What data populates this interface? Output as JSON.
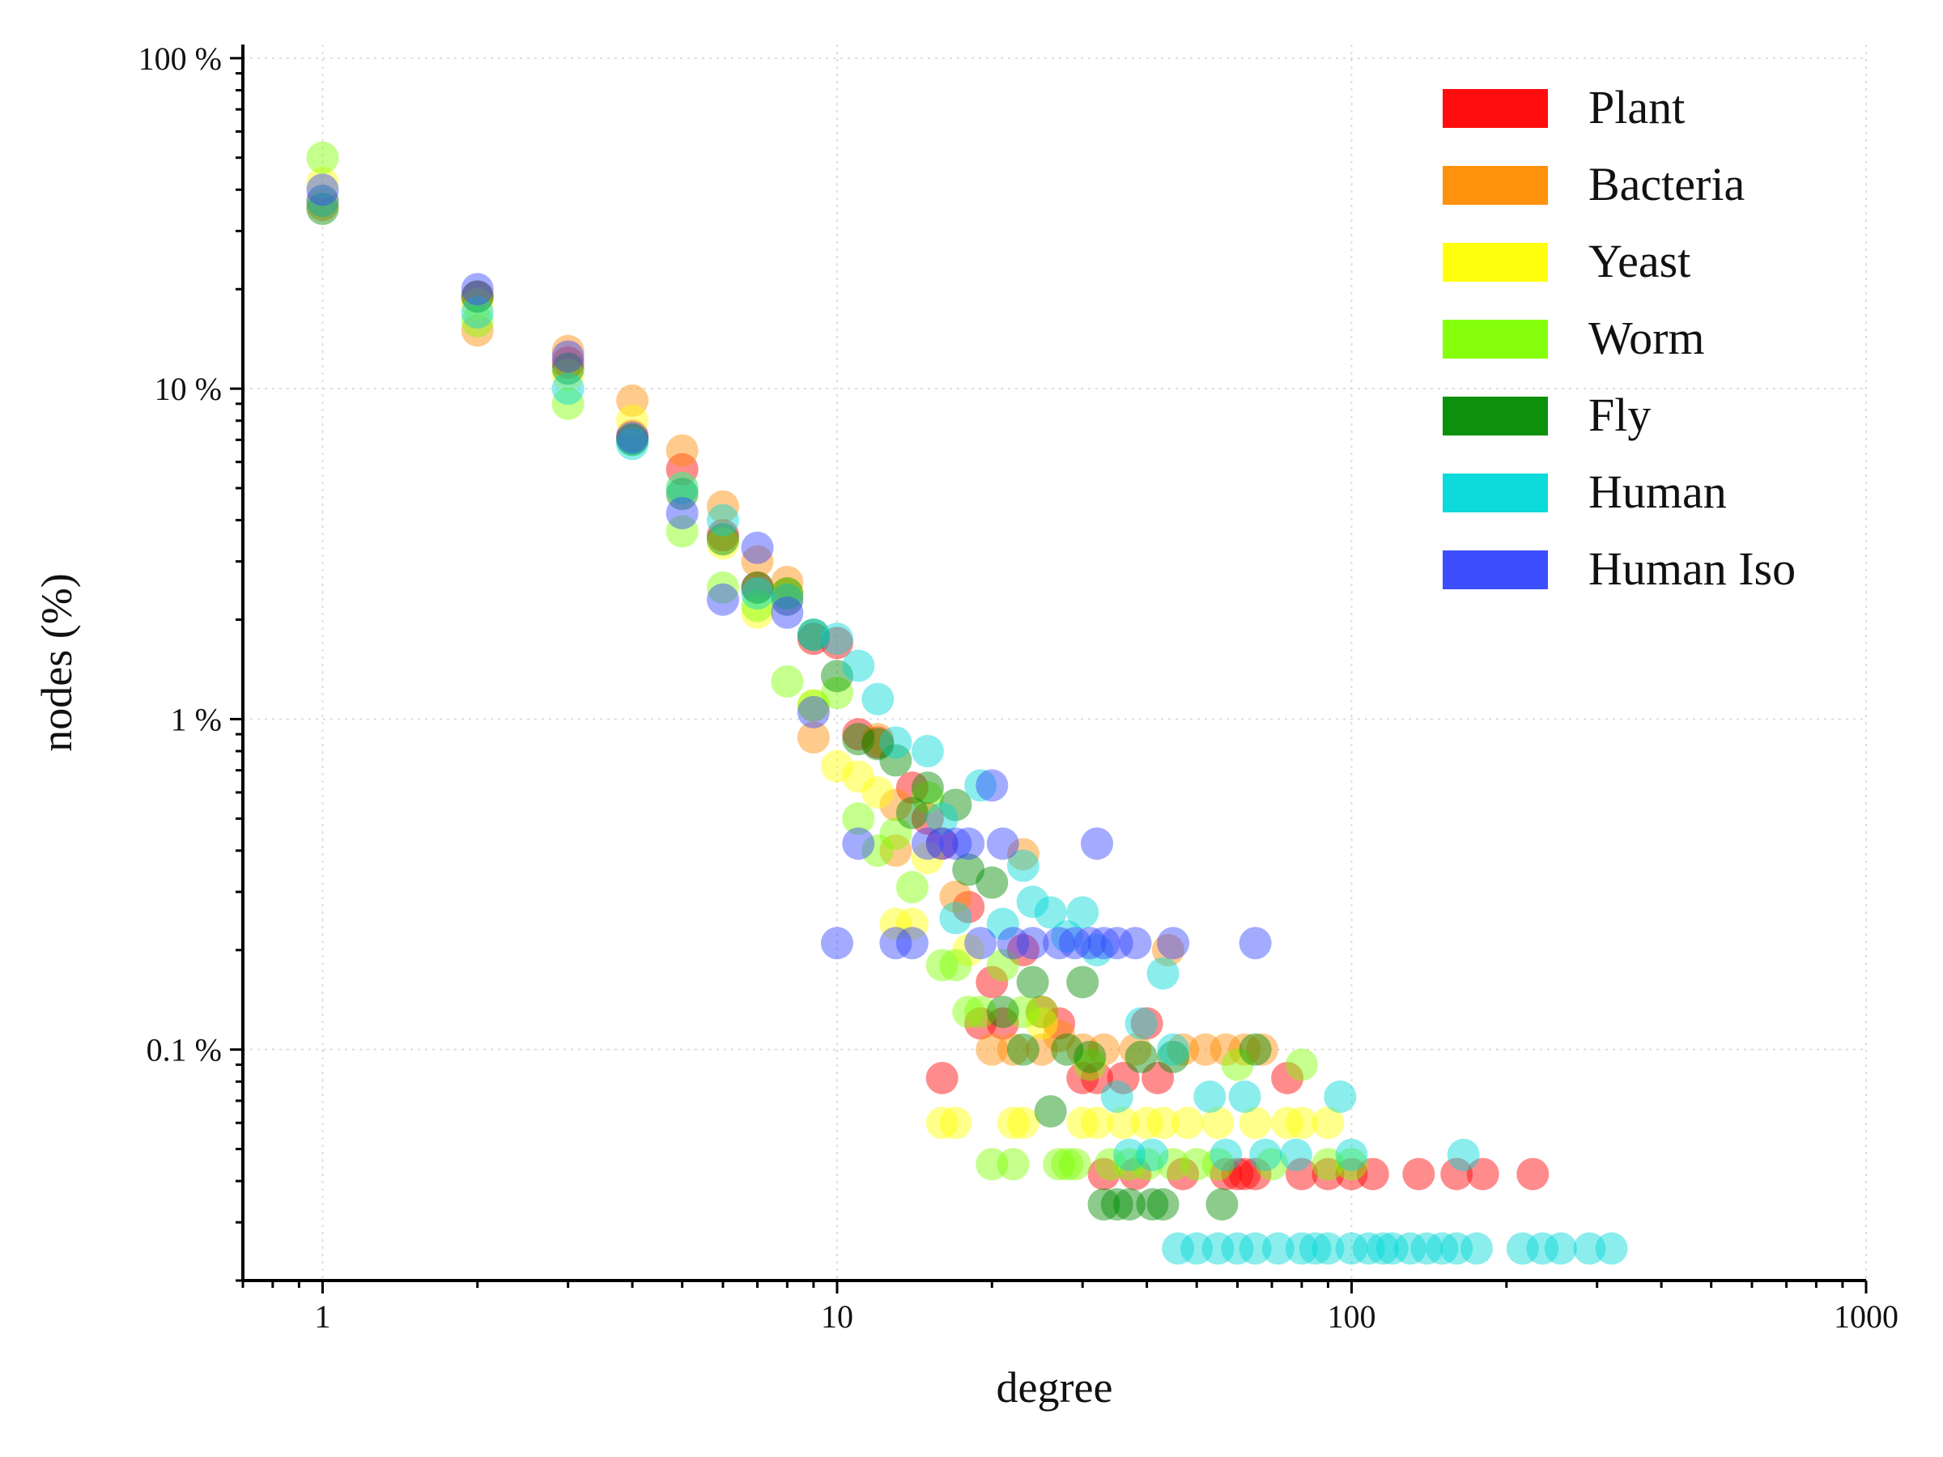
{
  "chart_data": {
    "type": "scatter",
    "title": "",
    "xlabel": "degree",
    "ylabel": "nodes (%)",
    "x_scale": "log",
    "y_scale": "log",
    "xlim": [
      0.7,
      1000
    ],
    "ylim": [
      0.02,
      110
    ],
    "x_ticks": [
      {
        "value": 1,
        "label": "1"
      },
      {
        "value": 10,
        "label": "10"
      },
      {
        "value": 100,
        "label": "100"
      },
      {
        "value": 1000,
        "label": "1000"
      }
    ],
    "y_ticks": [
      {
        "value": 0.1,
        "label": "0.1 %"
      },
      {
        "value": 1,
        "label": "1 %"
      },
      {
        "value": 10,
        "label": "10 %"
      },
      {
        "value": 100,
        "label": "100 %"
      }
    ],
    "grid": true,
    "legend_position": "top-right",
    "series": [
      {
        "name": "Plant",
        "color": "#ff0000",
        "points": [
          [
            1,
            37
          ],
          [
            2,
            19
          ],
          [
            3,
            12
          ],
          [
            4,
            7.2
          ],
          [
            5,
            5.7
          ],
          [
            6,
            3.6
          ],
          [
            7,
            2.5
          ],
          [
            8,
            2.3
          ],
          [
            9,
            1.75
          ],
          [
            10,
            1.7
          ],
          [
            11,
            0.9
          ],
          [
            12,
            0.85
          ],
          [
            14,
            0.62
          ],
          [
            15,
            0.5
          ],
          [
            16,
            0.42
          ],
          [
            16,
            0.082
          ],
          [
            18,
            0.27
          ],
          [
            19,
            0.12
          ],
          [
            20,
            0.16
          ],
          [
            21,
            0.12
          ],
          [
            23,
            0.2
          ],
          [
            25,
            0.13
          ],
          [
            27,
            0.12
          ],
          [
            30,
            0.082
          ],
          [
            32,
            0.082
          ],
          [
            33,
            0.042
          ],
          [
            36,
            0.082
          ],
          [
            38,
            0.042
          ],
          [
            40,
            0.12
          ],
          [
            42,
            0.082
          ],
          [
            47,
            0.042
          ],
          [
            57,
            0.042
          ],
          [
            60,
            0.042
          ],
          [
            62,
            0.042
          ],
          [
            65,
            0.042
          ],
          [
            75,
            0.082
          ],
          [
            80,
            0.042
          ],
          [
            90,
            0.042
          ],
          [
            100,
            0.042
          ],
          [
            110,
            0.042
          ],
          [
            135,
            0.042
          ],
          [
            160,
            0.042
          ],
          [
            180,
            0.042
          ],
          [
            225,
            0.042
          ]
        ]
      },
      {
        "name": "Bacteria",
        "color": "#ff8c00",
        "points": [
          [
            1,
            36
          ],
          [
            2,
            15
          ],
          [
            3,
            13
          ],
          [
            4,
            9.2
          ],
          [
            5,
            6.5
          ],
          [
            6,
            4.4
          ],
          [
            7,
            3
          ],
          [
            8,
            2.6
          ],
          [
            9,
            0.88
          ],
          [
            12,
            0.87
          ],
          [
            13,
            0.55
          ],
          [
            13,
            0.4
          ],
          [
            17,
            0.29
          ],
          [
            20,
            0.1
          ],
          [
            22,
            0.1
          ],
          [
            23,
            0.39
          ],
          [
            25,
            0.1
          ],
          [
            27,
            0.11
          ],
          [
            30,
            0.1
          ],
          [
            33,
            0.1
          ],
          [
            38,
            0.1
          ],
          [
            44,
            0.2
          ],
          [
            47,
            0.1
          ],
          [
            52,
            0.1
          ],
          [
            57,
            0.1
          ],
          [
            62,
            0.1
          ],
          [
            67,
            0.1
          ]
        ]
      },
      {
        "name": "Yeast",
        "color": "#ffff00",
        "points": [
          [
            1,
            42
          ],
          [
            2,
            18
          ],
          [
            3,
            11
          ],
          [
            4,
            8
          ],
          [
            5,
            5
          ],
          [
            6,
            3.4
          ],
          [
            7,
            2.1
          ],
          [
            8,
            2.4
          ],
          [
            9,
            1.1
          ],
          [
            10,
            0.72
          ],
          [
            11,
            0.67
          ],
          [
            12,
            0.6
          ],
          [
            13,
            0.24
          ],
          [
            14,
            0.24
          ],
          [
            15,
            0.38
          ],
          [
            16,
            0.06
          ],
          [
            17,
            0.06
          ],
          [
            18,
            0.2
          ],
          [
            22,
            0.06
          ],
          [
            23,
            0.06
          ],
          [
            25,
            0.12
          ],
          [
            30,
            0.06
          ],
          [
            32,
            0.06
          ],
          [
            36,
            0.06
          ],
          [
            40,
            0.06
          ],
          [
            43,
            0.06
          ],
          [
            48,
            0.06
          ],
          [
            55,
            0.06
          ],
          [
            65,
            0.06
          ],
          [
            75,
            0.06
          ],
          [
            80,
            0.06
          ],
          [
            90,
            0.06
          ]
        ]
      },
      {
        "name": "Worm",
        "color": "#7fff00",
        "points": [
          [
            1,
            50
          ],
          [
            2,
            16
          ],
          [
            3,
            9
          ],
          [
            4,
            7
          ],
          [
            5,
            3.7
          ],
          [
            6,
            2.5
          ],
          [
            7,
            2.2
          ],
          [
            8,
            1.3
          ],
          [
            9,
            1.1
          ],
          [
            10,
            1.2
          ],
          [
            11,
            0.5
          ],
          [
            12,
            0.4
          ],
          [
            13,
            0.45
          ],
          [
            14,
            0.31
          ],
          [
            15,
            0.58
          ],
          [
            16,
            0.18
          ],
          [
            17,
            0.18
          ],
          [
            18,
            0.13
          ],
          [
            19,
            0.13
          ],
          [
            20,
            0.045
          ],
          [
            21,
            0.18
          ],
          [
            22,
            0.045
          ],
          [
            23,
            0.13
          ],
          [
            25,
            0.13
          ],
          [
            27,
            0.045
          ],
          [
            28,
            0.045
          ],
          [
            29,
            0.045
          ],
          [
            31,
            0.09
          ],
          [
            34,
            0.045
          ],
          [
            37,
            0.045
          ],
          [
            40,
            0.045
          ],
          [
            45,
            0.045
          ],
          [
            50,
            0.045
          ],
          [
            55,
            0.045
          ],
          [
            60,
            0.09
          ],
          [
            70,
            0.045
          ],
          [
            80,
            0.09
          ],
          [
            90,
            0.045
          ],
          [
            100,
            0.045
          ]
        ]
      },
      {
        "name": "Fly",
        "color": "#008b00",
        "points": [
          [
            1,
            35
          ],
          [
            2,
            19
          ],
          [
            3,
            11.5
          ],
          [
            4,
            7
          ],
          [
            5,
            4.8
          ],
          [
            6,
            3.5
          ],
          [
            7,
            2.5
          ],
          [
            8,
            2.4
          ],
          [
            9,
            1.8
          ],
          [
            10,
            1.35
          ],
          [
            11,
            0.87
          ],
          [
            12,
            0.84
          ],
          [
            13,
            0.75
          ],
          [
            14,
            0.52
          ],
          [
            15,
            0.62
          ],
          [
            17,
            0.55
          ],
          [
            18,
            0.35
          ],
          [
            20,
            0.32
          ],
          [
            21,
            0.13
          ],
          [
            23,
            0.1
          ],
          [
            24,
            0.16
          ],
          [
            26,
            0.065
          ],
          [
            28,
            0.1
          ],
          [
            30,
            0.16
          ],
          [
            31,
            0.095
          ],
          [
            33,
            0.034
          ],
          [
            35,
            0.034
          ],
          [
            37,
            0.034
          ],
          [
            39,
            0.095
          ],
          [
            41,
            0.034
          ],
          [
            43,
            0.034
          ],
          [
            45,
            0.095
          ],
          [
            56,
            0.034
          ],
          [
            65,
            0.1
          ]
        ]
      },
      {
        "name": "Human",
        "color": "#00d8d8",
        "points": [
          [
            1,
            37
          ],
          [
            2,
            17
          ],
          [
            3,
            10
          ],
          [
            4,
            6.8
          ],
          [
            5,
            5
          ],
          [
            6,
            4
          ],
          [
            7,
            2.4
          ],
          [
            8,
            2.3
          ],
          [
            9,
            1.8
          ],
          [
            10,
            1.75
          ],
          [
            11,
            1.45
          ],
          [
            12,
            1.15
          ],
          [
            13,
            0.85
          ],
          [
            15,
            0.8
          ],
          [
            16,
            0.5
          ],
          [
            17,
            0.25
          ],
          [
            19,
            0.63
          ],
          [
            21,
            0.24
          ],
          [
            23,
            0.36
          ],
          [
            24,
            0.28
          ],
          [
            26,
            0.26
          ],
          [
            28,
            0.22
          ],
          [
            30,
            0.26
          ],
          [
            32,
            0.2
          ],
          [
            35,
            0.072
          ],
          [
            37,
            0.048
          ],
          [
            39,
            0.12
          ],
          [
            41,
            0.048
          ],
          [
            43,
            0.17
          ],
          [
            45,
            0.1
          ],
          [
            46,
            0.025
          ],
          [
            50,
            0.025
          ],
          [
            53,
            0.072
          ],
          [
            55,
            0.025
          ],
          [
            57,
            0.048
          ],
          [
            60,
            0.025
          ],
          [
            62,
            0.072
          ],
          [
            65,
            0.025
          ],
          [
            68,
            0.048
          ],
          [
            72,
            0.025
          ],
          [
            78,
            0.048
          ],
          [
            80,
            0.025
          ],
          [
            85,
            0.025
          ],
          [
            90,
            0.025
          ],
          [
            95,
            0.072
          ],
          [
            100,
            0.025
          ],
          [
            100,
            0.048
          ],
          [
            108,
            0.025
          ],
          [
            115,
            0.025
          ],
          [
            120,
            0.025
          ],
          [
            130,
            0.025
          ],
          [
            140,
            0.025
          ],
          [
            150,
            0.025
          ],
          [
            160,
            0.025
          ],
          [
            165,
            0.048
          ],
          [
            175,
            0.025
          ],
          [
            215,
            0.025
          ],
          [
            235,
            0.025
          ],
          [
            255,
            0.025
          ],
          [
            290,
            0.025
          ],
          [
            320,
            0.025
          ]
        ]
      },
      {
        "name": "Human Iso",
        "color": "#3344ff",
        "points": [
          [
            1,
            40
          ],
          [
            2,
            20
          ],
          [
            3,
            12.5
          ],
          [
            4,
            7.1
          ],
          [
            5,
            4.2
          ],
          [
            6,
            2.3
          ],
          [
            7,
            3.3
          ],
          [
            8,
            2.1
          ],
          [
            9,
            1.05
          ],
          [
            10,
            0.21
          ],
          [
            11,
            0.42
          ],
          [
            13,
            0.21
          ],
          [
            14,
            0.21
          ],
          [
            15,
            0.42
          ],
          [
            16,
            0.42
          ],
          [
            17,
            0.42
          ],
          [
            18,
            0.42
          ],
          [
            19,
            0.21
          ],
          [
            20,
            0.63
          ],
          [
            21,
            0.42
          ],
          [
            22,
            0.21
          ],
          [
            24,
            0.21
          ],
          [
            27,
            0.21
          ],
          [
            29,
            0.21
          ],
          [
            31,
            0.21
          ],
          [
            32,
            0.42
          ],
          [
            33,
            0.21
          ],
          [
            35,
            0.21
          ],
          [
            38,
            0.21
          ],
          [
            45,
            0.21
          ],
          [
            65,
            0.21
          ]
        ]
      }
    ]
  }
}
